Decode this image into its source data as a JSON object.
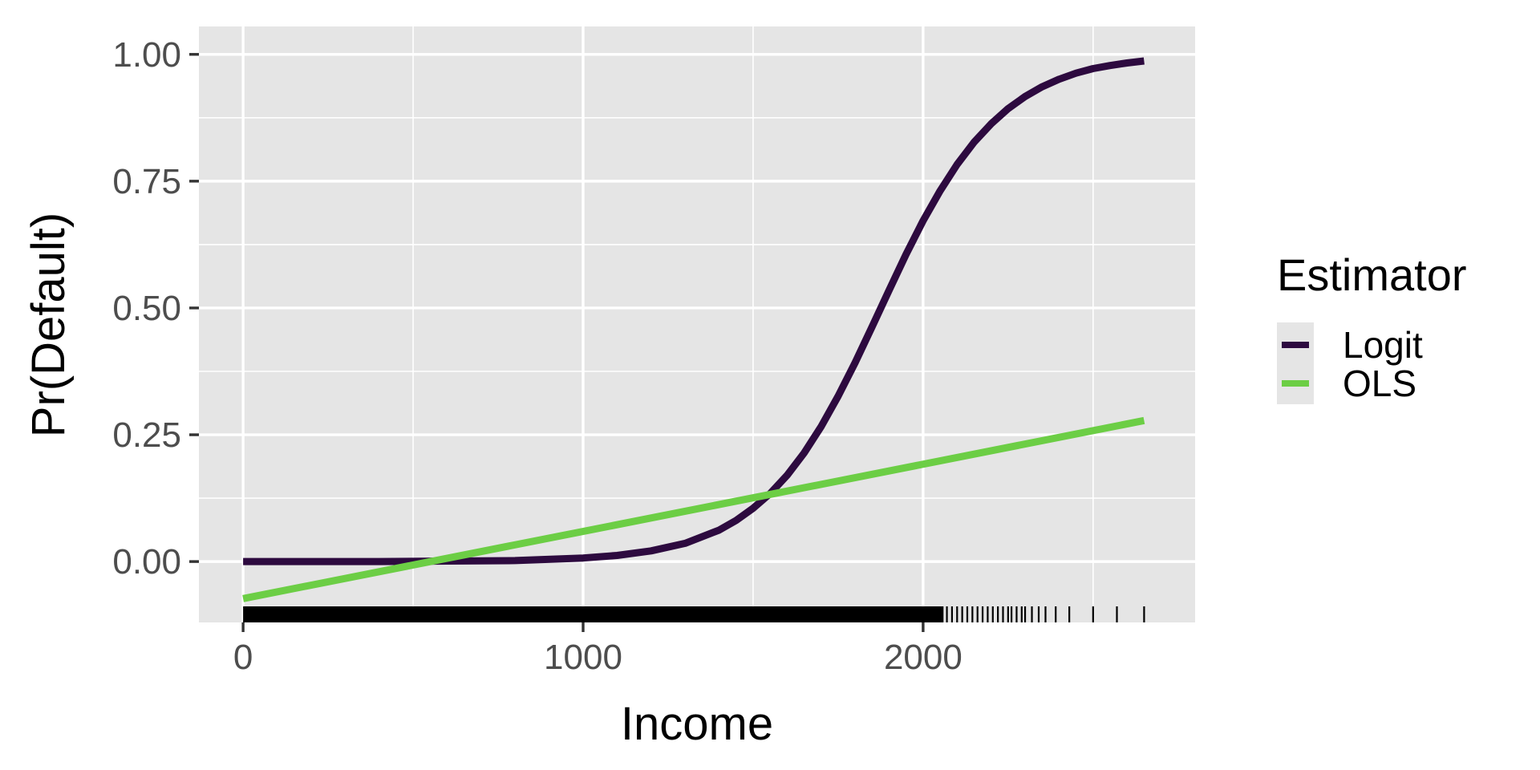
{
  "chart_data": {
    "type": "line",
    "xlabel": "Income",
    "ylabel": "Pr(Default)",
    "xlim": [
      -130,
      2800
    ],
    "ylim": [
      -0.12,
      1.055
    ],
    "x_ticks": [
      0,
      1000,
      2000
    ],
    "x_tick_labels": [
      "0",
      "1000",
      "2000"
    ],
    "y_ticks": [
      0,
      0.25,
      0.5,
      0.75,
      1
    ],
    "y_tick_labels": [
      "0.00",
      "0.25",
      "0.50",
      "0.75",
      "1.00"
    ],
    "grid": true,
    "legend": {
      "title": "Estimator",
      "placement": "right"
    },
    "series": [
      {
        "name": "Logit",
        "color": "#2d0a3f",
        "x": [
          0,
          200,
          400,
          600,
          800,
          1000,
          1100,
          1200,
          1300,
          1400,
          1450,
          1500,
          1550,
          1600,
          1650,
          1700,
          1750,
          1800,
          1850,
          1900,
          1950,
          2000,
          2050,
          2100,
          2150,
          2200,
          2250,
          2300,
          2350,
          2400,
          2450,
          2500,
          2550,
          2600,
          2650
        ],
        "y": [
          0.0,
          0.0,
          0.0,
          0.001,
          0.002,
          0.007,
          0.012,
          0.021,
          0.036,
          0.062,
          0.081,
          0.105,
          0.134,
          0.17,
          0.214,
          0.266,
          0.326,
          0.392,
          0.463,
          0.535,
          0.606,
          0.672,
          0.731,
          0.783,
          0.827,
          0.863,
          0.893,
          0.917,
          0.936,
          0.951,
          0.963,
          0.972,
          0.978,
          0.983,
          0.987
        ]
      },
      {
        "name": "OLS",
        "color": "#6cce45",
        "x": [
          0,
          2650
        ],
        "y": [
          -0.073,
          0.278
        ]
      }
    ],
    "rug": {
      "color": "#000000",
      "ranges": [
        [
          0,
          2060
        ]
      ],
      "points": [
        2070,
        2085,
        2100,
        2115,
        2130,
        2145,
        2160,
        2175,
        2190,
        2205,
        2220,
        2235,
        2250,
        2260,
        2275,
        2290,
        2300,
        2320,
        2340,
        2360,
        2390,
        2430,
        2500,
        2570,
        2650
      ]
    }
  }
}
